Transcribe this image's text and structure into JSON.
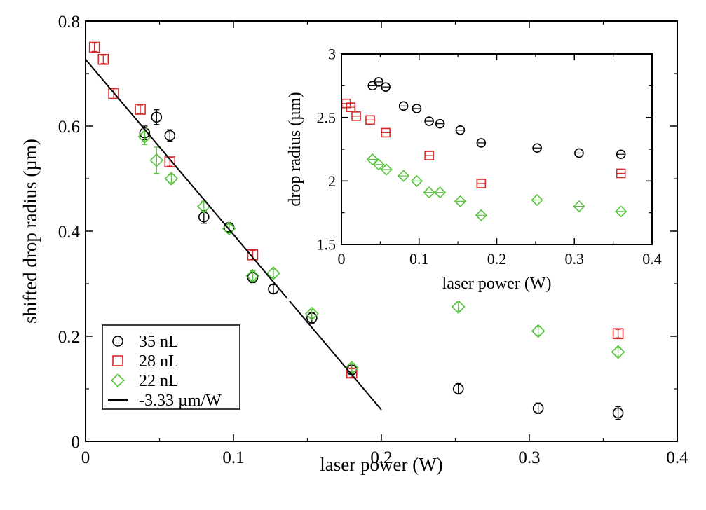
{
  "chart_data": [
    {
      "type": "scatter",
      "title": "",
      "xlabel": "laser power (W)",
      "ylabel": "shifted drop radius (µm)",
      "xlim": [
        0,
        0.4
      ],
      "ylim": [
        0,
        0.8
      ],
      "xticks": [
        0,
        0.1,
        0.2,
        0.3,
        0.4
      ],
      "xtick_labels": [
        "0",
        "0.1",
        "0.2",
        "0.3",
        "0.4"
      ],
      "yticks": [
        0,
        0.2,
        0.4,
        0.6,
        0.8
      ],
      "ytick_labels": [
        "0",
        "0.2",
        "0.4",
        "0.6",
        "0.8"
      ],
      "grid": false,
      "legend_position": "bottom-left",
      "series": [
        {
          "name": "35 nL",
          "marker": "circle",
          "color": "#000000",
          "points": [
            {
              "x": 0.04,
              "y": 0.587,
              "err": 0.013
            },
            {
              "x": 0.048,
              "y": 0.617,
              "err": 0.014
            },
            {
              "x": 0.057,
              "y": 0.582,
              "err": 0.011
            },
            {
              "x": 0.08,
              "y": 0.427,
              "err": 0.012
            },
            {
              "x": 0.097,
              "y": 0.407,
              "err": 0.008
            },
            {
              "x": 0.113,
              "y": 0.312,
              "err": 0.01
            },
            {
              "x": 0.127,
              "y": 0.29,
              "err": 0.008
            },
            {
              "x": 0.153,
              "y": 0.235,
              "err": 0.01
            },
            {
              "x": 0.18,
              "y": 0.136,
              "err": 0.008
            },
            {
              "x": 0.252,
              "y": 0.1,
              "err": 0.01
            },
            {
              "x": 0.306,
              "y": 0.063,
              "err": 0.01
            },
            {
              "x": 0.36,
              "y": 0.054,
              "err": 0.012
            }
          ]
        },
        {
          "name": "28 nL",
          "marker": "square",
          "color": "#d62a2a",
          "points": [
            {
              "x": 0.006,
              "y": 0.75,
              "err": 0.008
            },
            {
              "x": 0.012,
              "y": 0.727,
              "err": 0.008
            },
            {
              "x": 0.019,
              "y": 0.662,
              "err": 0.01
            },
            {
              "x": 0.037,
              "y": 0.632,
              "err": 0.008
            },
            {
              "x": 0.057,
              "y": 0.532,
              "err": 0.008
            },
            {
              "x": 0.113,
              "y": 0.355,
              "err": 0.008
            },
            {
              "x": 0.18,
              "y": 0.13,
              "err": 0.008
            },
            {
              "x": 0.36,
              "y": 0.205,
              "err": 0.008
            }
          ]
        },
        {
          "name": "22 nL",
          "marker": "diamond",
          "color": "#55c43a",
          "points": [
            {
              "x": 0.04,
              "y": 0.58,
              "err": 0.015
            },
            {
              "x": 0.048,
              "y": 0.535,
              "err": 0.025
            },
            {
              "x": 0.058,
              "y": 0.5,
              "err": 0.008
            },
            {
              "x": 0.08,
              "y": 0.447,
              "err": 0.01
            },
            {
              "x": 0.097,
              "y": 0.405,
              "err": 0.008
            },
            {
              "x": 0.113,
              "y": 0.315,
              "err": 0.01
            },
            {
              "x": 0.127,
              "y": 0.32,
              "err": 0.008
            },
            {
              "x": 0.153,
              "y": 0.243,
              "err": 0.008
            },
            {
              "x": 0.18,
              "y": 0.14,
              "err": 0.008
            },
            {
              "x": 0.252,
              "y": 0.256,
              "err": 0.008
            },
            {
              "x": 0.306,
              "y": 0.21,
              "err": 0.008
            },
            {
              "x": 0.36,
              "y": 0.17,
              "err": 0.008
            }
          ]
        },
        {
          "name": "-3.33 µm/W",
          "type": "line",
          "color": "#000000",
          "x": [
            0,
            0.2
          ],
          "y": [
            0.727,
            0.06
          ]
        }
      ]
    },
    {
      "type": "scatter",
      "title": "",
      "xlabel": "laser power (W)",
      "ylabel": "drop radius (µm)",
      "xlim": [
        0,
        0.4
      ],
      "ylim": [
        1.5,
        3
      ],
      "xticks": [
        0,
        0.1,
        0.2,
        0.3,
        0.4
      ],
      "xtick_labels": [
        "0",
        "0.1",
        "0.2",
        "0.3",
        "0.4"
      ],
      "yticks": [
        1.5,
        2,
        2.5,
        3
      ],
      "ytick_labels": [
        "1.5",
        "2",
        "2.5",
        "3"
      ],
      "grid": false,
      "series": [
        {
          "name": "35 nL",
          "marker": "circle",
          "color": "#000000",
          "points": [
            {
              "x": 0.04,
              "y": 2.75
            },
            {
              "x": 0.048,
              "y": 2.78
            },
            {
              "x": 0.057,
              "y": 2.74
            },
            {
              "x": 0.08,
              "y": 2.59
            },
            {
              "x": 0.097,
              "y": 2.57
            },
            {
              "x": 0.113,
              "y": 2.47
            },
            {
              "x": 0.127,
              "y": 2.45
            },
            {
              "x": 0.153,
              "y": 2.4
            },
            {
              "x": 0.18,
              "y": 2.3
            },
            {
              "x": 0.252,
              "y": 2.26
            },
            {
              "x": 0.306,
              "y": 2.22
            },
            {
              "x": 0.36,
              "y": 2.21
            }
          ]
        },
        {
          "name": "28 nL",
          "marker": "square",
          "color": "#d62a2a",
          "points": [
            {
              "x": 0.006,
              "y": 2.61
            },
            {
              "x": 0.012,
              "y": 2.58
            },
            {
              "x": 0.019,
              "y": 2.51
            },
            {
              "x": 0.037,
              "y": 2.48
            },
            {
              "x": 0.057,
              "y": 2.38
            },
            {
              "x": 0.113,
              "y": 2.2
            },
            {
              "x": 0.18,
              "y": 1.98
            },
            {
              "x": 0.36,
              "y": 2.06
            }
          ]
        },
        {
          "name": "22 nL",
          "marker": "diamond",
          "color": "#55c43a",
          "points": [
            {
              "x": 0.04,
              "y": 2.17
            },
            {
              "x": 0.048,
              "y": 2.13
            },
            {
              "x": 0.058,
              "y": 2.09
            },
            {
              "x": 0.08,
              "y": 2.04
            },
            {
              "x": 0.097,
              "y": 2.0
            },
            {
              "x": 0.113,
              "y": 1.91
            },
            {
              "x": 0.127,
              "y": 1.91
            },
            {
              "x": 0.153,
              "y": 1.84
            },
            {
              "x": 0.18,
              "y": 1.73
            },
            {
              "x": 0.252,
              "y": 1.85
            },
            {
              "x": 0.306,
              "y": 1.8
            },
            {
              "x": 0.36,
              "y": 1.76
            }
          ]
        }
      ]
    }
  ]
}
